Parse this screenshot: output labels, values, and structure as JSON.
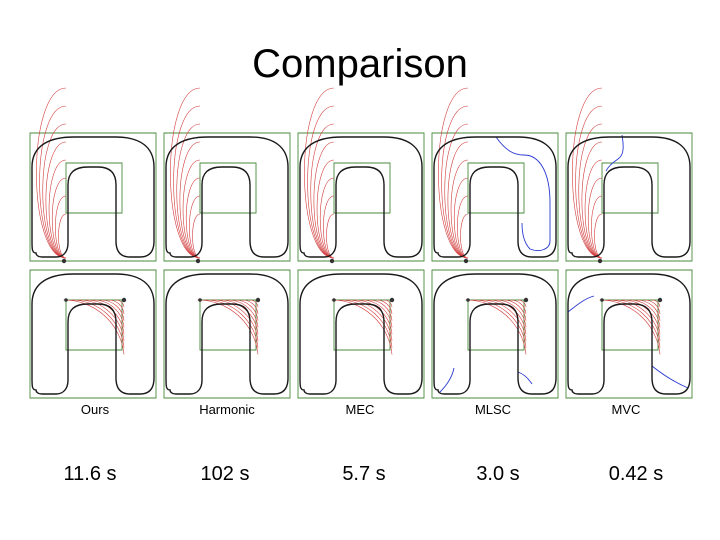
{
  "slide": {
    "title": "Comparison"
  },
  "methods": [
    {
      "name": "Ours",
      "time": "11.6 s"
    },
    {
      "name": "Harmonic",
      "time": "102 s"
    },
    {
      "name": "MEC",
      "time": "5.7 s"
    },
    {
      "name": "MLSC",
      "time": "3.0 s"
    },
    {
      "name": "MVC",
      "time": "0.42 s"
    }
  ],
  "colors": {
    "outline": "#1a1a1a",
    "cage": "#4a8a3c",
    "contour": "#d23a3a",
    "negative_contour": "#2a3ad0",
    "background": "#ffffff"
  }
}
